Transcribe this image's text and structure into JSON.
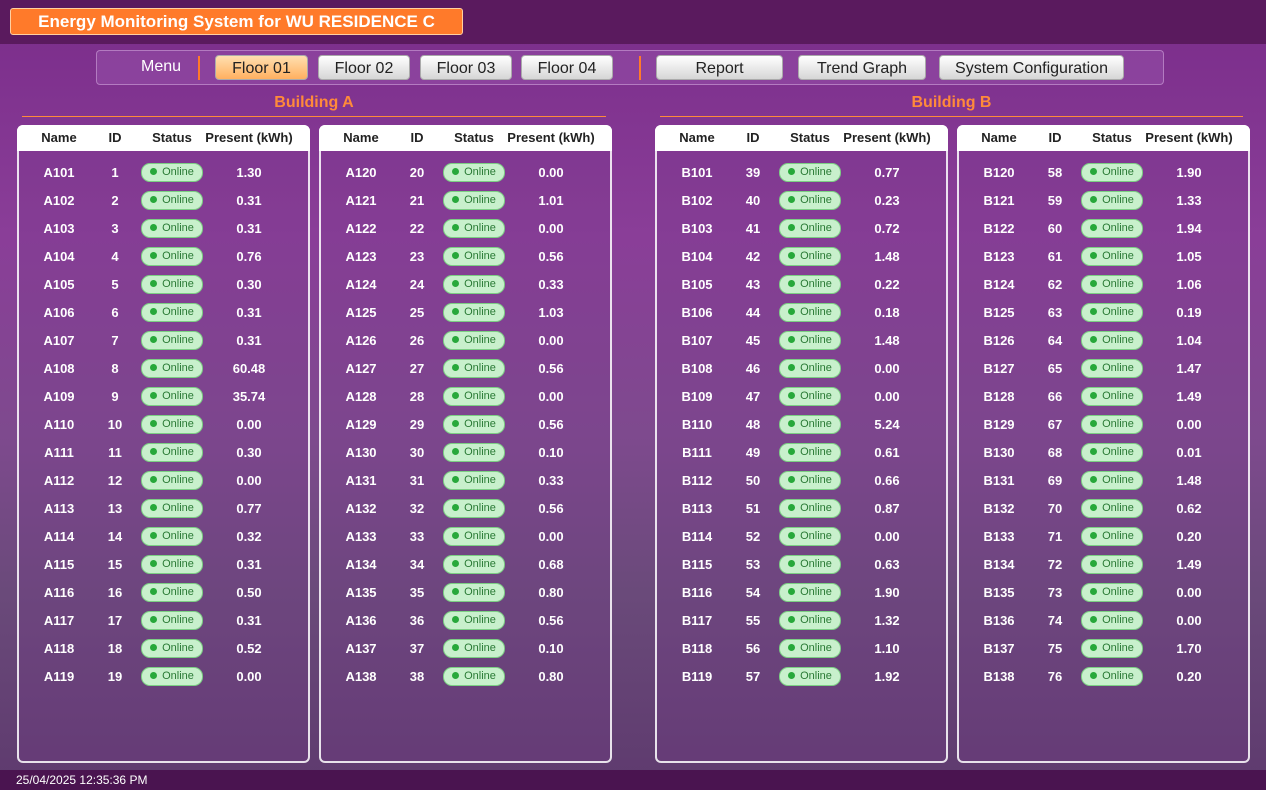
{
  "header": {
    "title": "Energy Monitoring System for WU RESIDENCE C"
  },
  "menu": {
    "label": "Menu",
    "floors": [
      "Floor 01",
      "Floor 02",
      "Floor 03",
      "Floor 04"
    ],
    "actions": [
      "Report",
      "Trend Graph",
      "System Configuration"
    ]
  },
  "columns": [
    "Name",
    "ID",
    "Status",
    "Present (kWh)"
  ],
  "buildings": [
    {
      "title": "Building A",
      "tables": [
        {
          "rows": [
            [
              "A101",
              "1",
              "Online",
              "1.30"
            ],
            [
              "A102",
              "2",
              "Online",
              "0.31"
            ],
            [
              "A103",
              "3",
              "Online",
              "0.31"
            ],
            [
              "A104",
              "4",
              "Online",
              "0.76"
            ],
            [
              "A105",
              "5",
              "Online",
              "0.30"
            ],
            [
              "A106",
              "6",
              "Online",
              "0.31"
            ],
            [
              "A107",
              "7",
              "Online",
              "0.31"
            ],
            [
              "A108",
              "8",
              "Online",
              "60.48"
            ],
            [
              "A109",
              "9",
              "Online",
              "35.74"
            ],
            [
              "A110",
              "10",
              "Online",
              "0.00"
            ],
            [
              "A111",
              "11",
              "Online",
              "0.30"
            ],
            [
              "A112",
              "12",
              "Online",
              "0.00"
            ],
            [
              "A113",
              "13",
              "Online",
              "0.77"
            ],
            [
              "A114",
              "14",
              "Online",
              "0.32"
            ],
            [
              "A115",
              "15",
              "Online",
              "0.31"
            ],
            [
              "A116",
              "16",
              "Online",
              "0.50"
            ],
            [
              "A117",
              "17",
              "Online",
              "0.31"
            ],
            [
              "A118",
              "18",
              "Online",
              "0.52"
            ],
            [
              "A119",
              "19",
              "Online",
              "0.00"
            ]
          ]
        },
        {
          "rows": [
            [
              "A120",
              "20",
              "Online",
              "0.00"
            ],
            [
              "A121",
              "21",
              "Online",
              "1.01"
            ],
            [
              "A122",
              "22",
              "Online",
              "0.00"
            ],
            [
              "A123",
              "23",
              "Online",
              "0.56"
            ],
            [
              "A124",
              "24",
              "Online",
              "0.33"
            ],
            [
              "A125",
              "25",
              "Online",
              "1.03"
            ],
            [
              "A126",
              "26",
              "Online",
              "0.00"
            ],
            [
              "A127",
              "27",
              "Online",
              "0.56"
            ],
            [
              "A128",
              "28",
              "Online",
              "0.00"
            ],
            [
              "A129",
              "29",
              "Online",
              "0.56"
            ],
            [
              "A130",
              "30",
              "Online",
              "0.10"
            ],
            [
              "A131",
              "31",
              "Online",
              "0.33"
            ],
            [
              "A132",
              "32",
              "Online",
              "0.56"
            ],
            [
              "A133",
              "33",
              "Online",
              "0.00"
            ],
            [
              "A134",
              "34",
              "Online",
              "0.68"
            ],
            [
              "A135",
              "35",
              "Online",
              "0.80"
            ],
            [
              "A136",
              "36",
              "Online",
              "0.56"
            ],
            [
              "A137",
              "37",
              "Online",
              "0.10"
            ],
            [
              "A138",
              "38",
              "Online",
              "0.80"
            ]
          ]
        }
      ]
    },
    {
      "title": "Building B",
      "tables": [
        {
          "rows": [
            [
              "B101",
              "39",
              "Online",
              "0.77"
            ],
            [
              "B102",
              "40",
              "Online",
              "0.23"
            ],
            [
              "B103",
              "41",
              "Online",
              "0.72"
            ],
            [
              "B104",
              "42",
              "Online",
              "1.48"
            ],
            [
              "B105",
              "43",
              "Online",
              "0.22"
            ],
            [
              "B106",
              "44",
              "Online",
              "0.18"
            ],
            [
              "B107",
              "45",
              "Online",
              "1.48"
            ],
            [
              "B108",
              "46",
              "Online",
              "0.00"
            ],
            [
              "B109",
              "47",
              "Online",
              "0.00"
            ],
            [
              "B110",
              "48",
              "Online",
              "5.24"
            ],
            [
              "B111",
              "49",
              "Online",
              "0.61"
            ],
            [
              "B112",
              "50",
              "Online",
              "0.66"
            ],
            [
              "B113",
              "51",
              "Online",
              "0.87"
            ],
            [
              "B114",
              "52",
              "Online",
              "0.00"
            ],
            [
              "B115",
              "53",
              "Online",
              "0.63"
            ],
            [
              "B116",
              "54",
              "Online",
              "1.90"
            ],
            [
              "B117",
              "55",
              "Online",
              "1.32"
            ],
            [
              "B118",
              "56",
              "Online",
              "1.10"
            ],
            [
              "B119",
              "57",
              "Online",
              "1.92"
            ]
          ]
        },
        {
          "rows": [
            [
              "B120",
              "58",
              "Online",
              "1.90"
            ],
            [
              "B121",
              "59",
              "Online",
              "1.33"
            ],
            [
              "B122",
              "60",
              "Online",
              "1.94"
            ],
            [
              "B123",
              "61",
              "Online",
              "1.05"
            ],
            [
              "B124",
              "62",
              "Online",
              "1.06"
            ],
            [
              "B125",
              "63",
              "Online",
              "0.19"
            ],
            [
              "B126",
              "64",
              "Online",
              "1.04"
            ],
            [
              "B127",
              "65",
              "Online",
              "1.47"
            ],
            [
              "B128",
              "66",
              "Online",
              "1.49"
            ],
            [
              "B129",
              "67",
              "Online",
              "0.00"
            ],
            [
              "B130",
              "68",
              "Online",
              "0.01"
            ],
            [
              "B131",
              "69",
              "Online",
              "1.48"
            ],
            [
              "B132",
              "70",
              "Online",
              "0.62"
            ],
            [
              "B133",
              "71",
              "Online",
              "0.20"
            ],
            [
              "B134",
              "72",
              "Online",
              "1.49"
            ],
            [
              "B135",
              "73",
              "Online",
              "0.00"
            ],
            [
              "B136",
              "74",
              "Online",
              "0.00"
            ],
            [
              "B137",
              "75",
              "Online",
              "1.70"
            ],
            [
              "B138",
              "76",
              "Online",
              "0.20"
            ]
          ]
        }
      ]
    }
  ],
  "footer": {
    "timestamp": "25/04/2025 12:35:36 PM"
  }
}
